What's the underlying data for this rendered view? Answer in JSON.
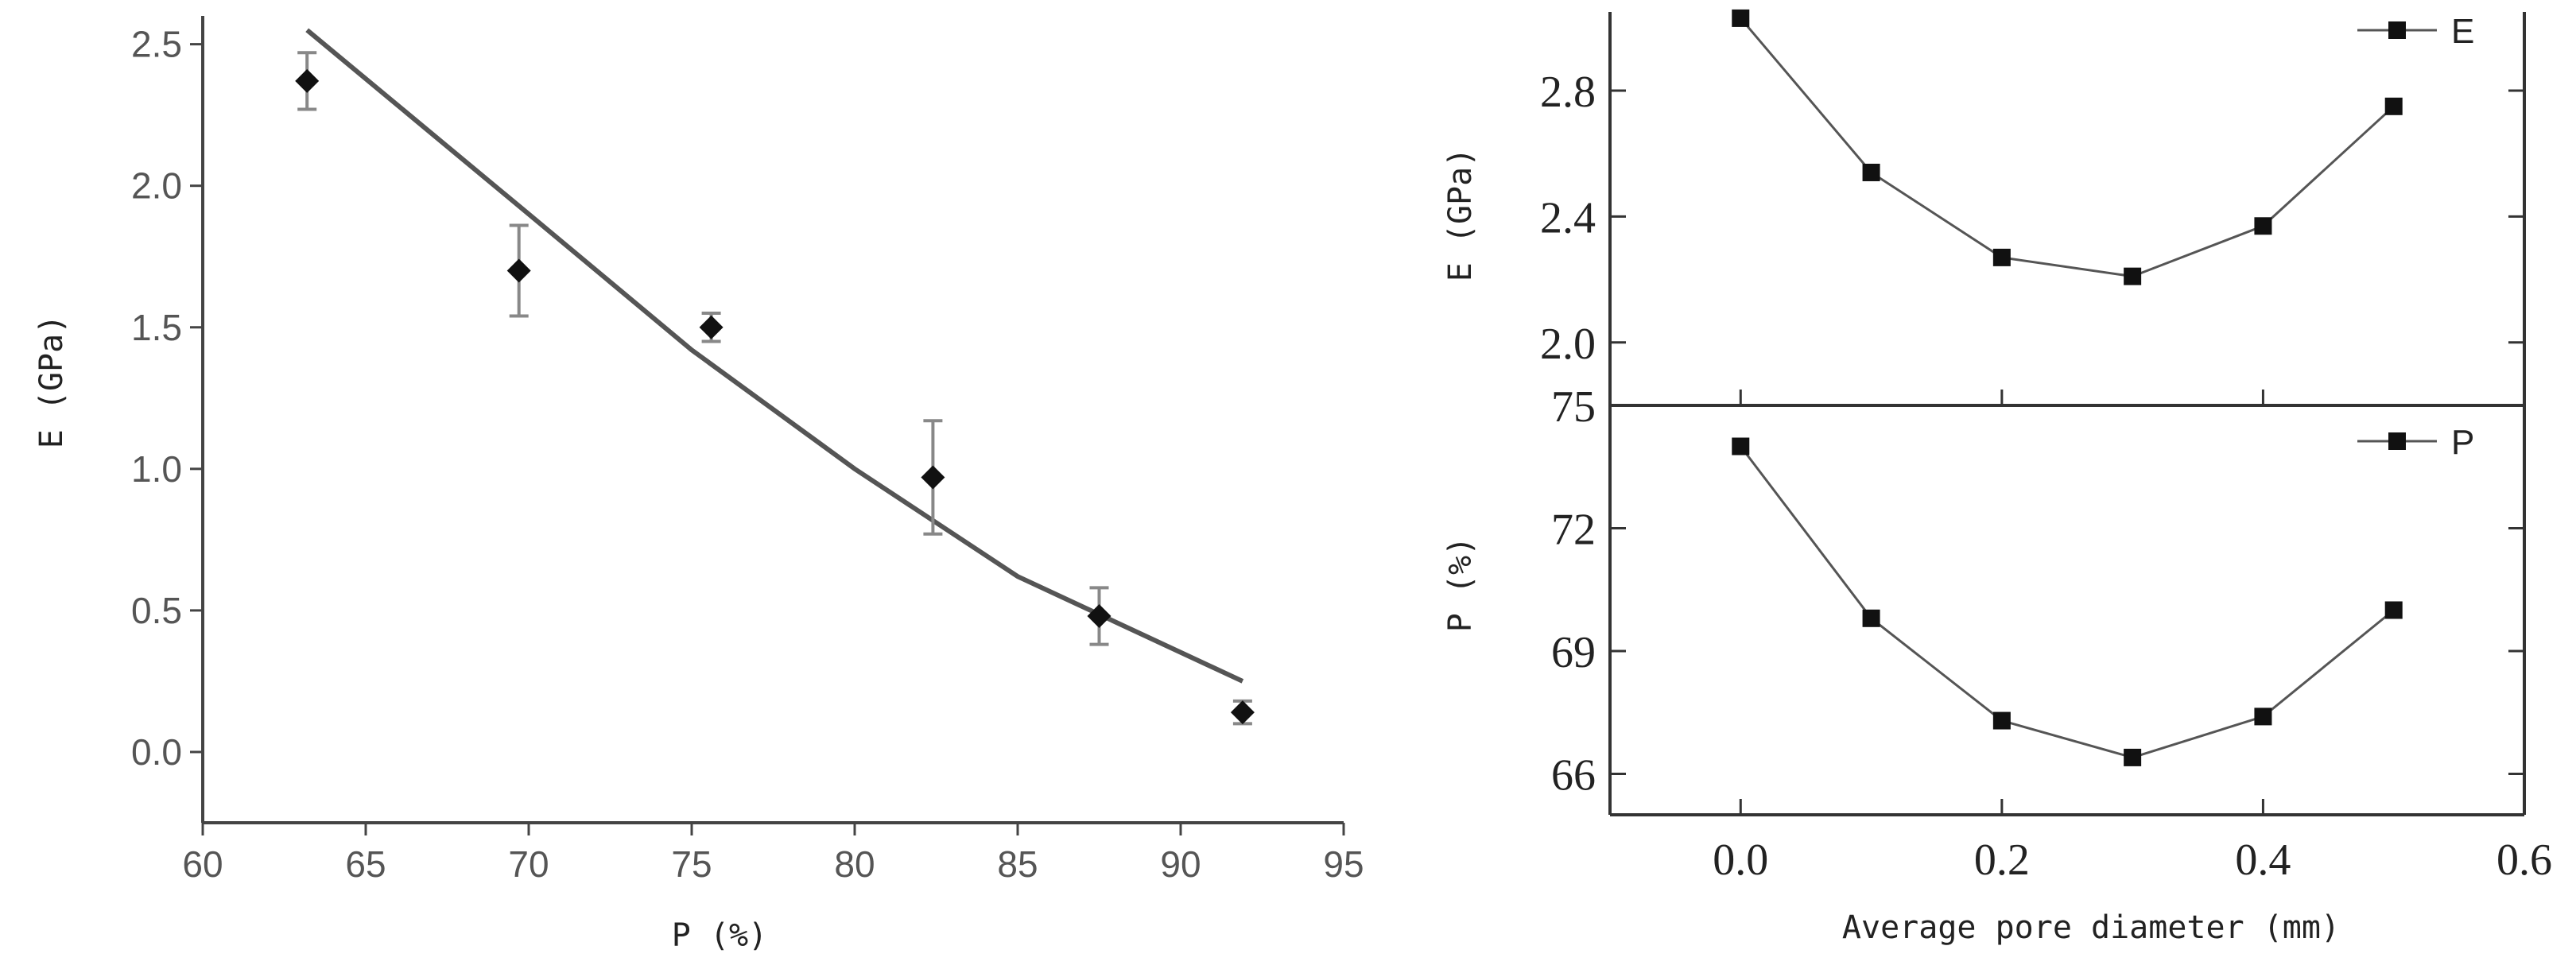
{
  "chart_data": [
    {
      "type": "scatter",
      "xlabel": "P  (%)",
      "ylabel": "E (GPa)",
      "xlim": [
        60,
        95
      ],
      "ylim": [
        -0.25,
        2.6
      ],
      "x_ticks": [
        60,
        65,
        70,
        75,
        80,
        85,
        90,
        95
      ],
      "y_ticks": [
        0.0,
        0.5,
        1.0,
        1.5,
        2.0,
        2.5
      ],
      "x_tick_labels": [
        "60",
        "65",
        "70",
        "75",
        "80",
        "85",
        "90",
        "95"
      ],
      "y_tick_labels": [
        "0.0",
        "0.5",
        "1.0",
        "1.5",
        "2.0",
        "2.5"
      ],
      "grid": false,
      "series": [
        {
          "marker": "diamond",
          "x": [
            63.2,
            69.7,
            75.6,
            82.4,
            87.5,
            91.9
          ],
          "y": [
            2.37,
            1.7,
            1.5,
            0.97,
            0.48,
            0.14
          ],
          "error": [
            0.1,
            0.16,
            0.05,
            0.2,
            0.1,
            0.04
          ]
        },
        {
          "style": "line",
          "x": [
            63.2,
            70.0,
            75.0,
            80.0,
            85.0,
            91.9
          ],
          "y": [
            2.55,
            1.9,
            1.42,
            1.0,
            0.62,
            0.25
          ]
        }
      ],
      "colors": {
        "marker": "#111111",
        "line": "#555555",
        "axis": "#444444",
        "errorbar": "#888888"
      }
    },
    {
      "type": "line",
      "xlabel": "Average pore diameter (mm)",
      "xlim": [
        -0.1,
        0.6
      ],
      "x_ticks": [
        0.0,
        0.2,
        0.4,
        0.6
      ],
      "x_tick_labels": [
        "0.0",
        "0.2",
        "0.4",
        "0.6"
      ],
      "grid": false,
      "legend_position": "top-right",
      "panels": [
        {
          "ylabel": "E (GPa)",
          "ylim": [
            1.8,
            3.05
          ],
          "y_ticks": [
            2.0,
            2.4,
            2.8
          ],
          "y_tick_labels": [
            "2.0",
            "2.4",
            "2.8"
          ],
          "series": [
            {
              "name": "E",
              "x": [
                0.0,
                0.1,
                0.2,
                0.3,
                0.4,
                0.5
              ],
              "y": [
                3.03,
                2.54,
                2.27,
                2.21,
                2.37,
                2.75
              ]
            }
          ]
        },
        {
          "ylabel": "P  (%)",
          "ylim": [
            65,
            75
          ],
          "y_ticks": [
            66,
            69,
            72,
            75
          ],
          "y_tick_labels": [
            "66",
            "69",
            "72",
            "75"
          ],
          "series": [
            {
              "name": "P",
              "x": [
                0.0,
                0.1,
                0.2,
                0.3,
                0.4,
                0.5
              ],
              "y": [
                74.0,
                69.8,
                67.3,
                66.4,
                67.4,
                70.0
              ]
            }
          ]
        }
      ],
      "colors": {
        "marker": "#111111",
        "line": "#555555",
        "axis": "#333333"
      }
    }
  ]
}
